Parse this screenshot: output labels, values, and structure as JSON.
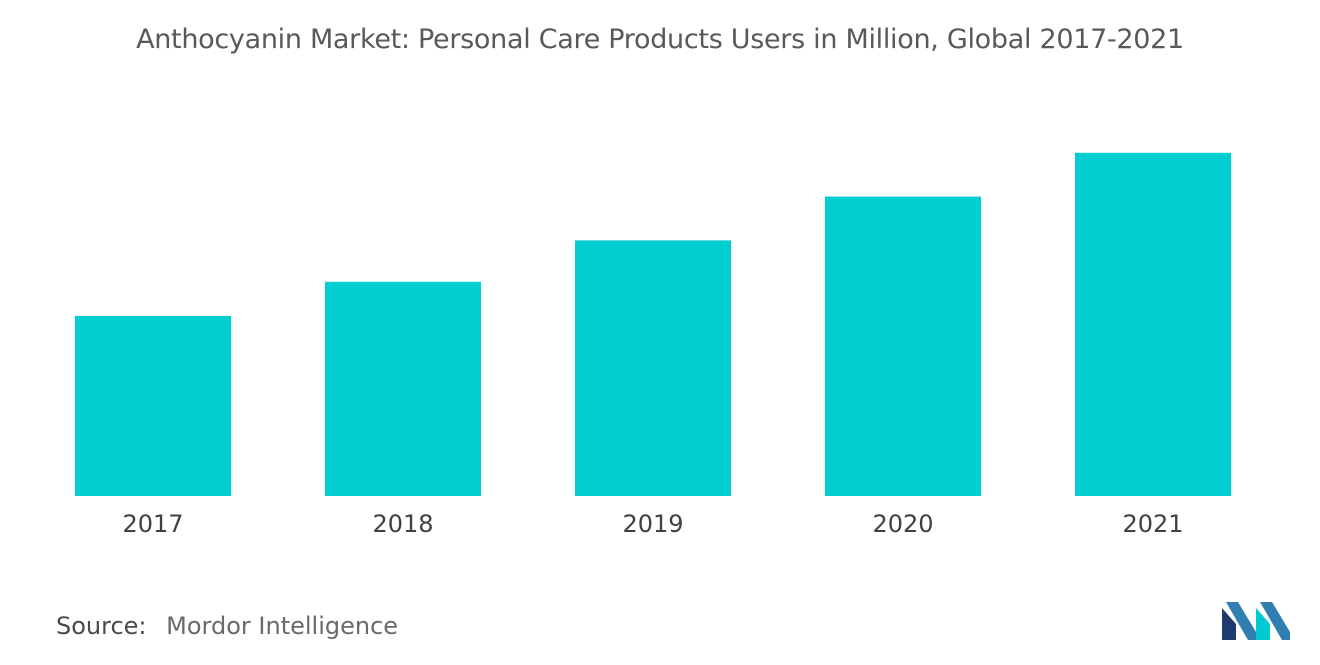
{
  "title": "Anthocyanin Market: Personal Care Products Users in Million, Global 2017-2021",
  "source": {
    "label": "Source:",
    "value": "Mordor Intelligence"
  },
  "brand": {
    "logo_icon": "mordor-intelligence-logo-icon",
    "colors": [
      "#1f3a6d",
      "#2f7fb0",
      "#00c9d2"
    ]
  },
  "chart_data": {
    "type": "bar",
    "categories": [
      "2017",
      "2018",
      "2019",
      "2020",
      "2021"
    ],
    "values": [
      1.48,
      1.76,
      2.1,
      2.46,
      2.82
    ],
    "title": "Anthocyanin Market: Personal Care Products Users in Million, Global 2017-2021",
    "xlabel": "",
    "ylabel": "",
    "ylim": [
      0,
      3.5
    ],
    "grid": false,
    "legend": "none",
    "bar_color": "#00ced1",
    "value_axis_shown": false
  }
}
